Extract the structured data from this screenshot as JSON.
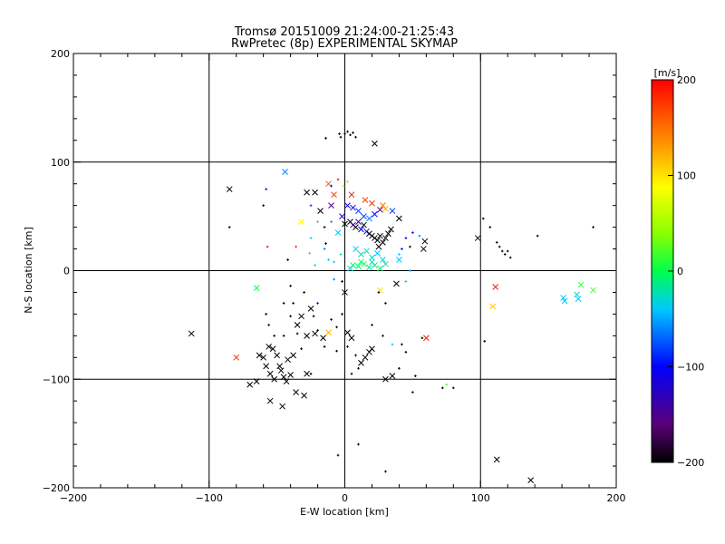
{
  "chart_data": {
    "type": "scatter",
    "title": "Tromsø 20151009 21:24:00-21:25:43",
    "subtitle": "RwPretec (8p) EXPERIMENTAL SKYMAP",
    "xlabel": "E-W location [km]",
    "ylabel": "N-S location [km]",
    "xlim": [
      -200,
      200
    ],
    "ylim": [
      -200,
      200
    ],
    "xticks": [
      -200,
      -100,
      0,
      100,
      200
    ],
    "yticks": [
      -200,
      -100,
      0,
      100,
      200
    ],
    "grid": true,
    "colorbar": {
      "label": "[m/s]",
      "range": [
        -200,
        200
      ],
      "ticks": [
        200,
        100,
        0,
        -100,
        -200
      ],
      "colormap": "black-purple-blue-cyan-green-yellow-orange-red",
      "placement": "right"
    },
    "markers": {
      "cross": "x",
      "dot": "+"
    },
    "points": [
      {
        "x": -113,
        "y": -58,
        "v": -200,
        "m": "x"
      },
      {
        "x": -85,
        "y": 75,
        "v": -200,
        "m": "x"
      },
      {
        "x": -80,
        "y": -80,
        "v": 180,
        "m": "x"
      },
      {
        "x": -65,
        "y": -16,
        "v": 0,
        "m": "x"
      },
      {
        "x": -63,
        "y": -78,
        "v": -200,
        "m": "x"
      },
      {
        "x": -60,
        "y": -80,
        "v": -200,
        "m": "x"
      },
      {
        "x": -58,
        "y": -88,
        "v": -200,
        "m": "x"
      },
      {
        "x": -56,
        "y": -70,
        "v": -200,
        "m": "x"
      },
      {
        "x": -55,
        "y": -95,
        "v": -200,
        "m": "x"
      },
      {
        "x": -53,
        "y": -72,
        "v": -200,
        "m": "x"
      },
      {
        "x": -52,
        "y": -100,
        "v": -200,
        "m": "x"
      },
      {
        "x": -50,
        "y": -78,
        "v": -200,
        "m": "x"
      },
      {
        "x": -48,
        "y": -88,
        "v": -200,
        "m": "x"
      },
      {
        "x": -47,
        "y": -92,
        "v": -200,
        "m": "x"
      },
      {
        "x": -46,
        "y": -125,
        "v": -200,
        "m": "x"
      },
      {
        "x": -45,
        "y": -98,
        "v": -200,
        "m": "x"
      },
      {
        "x": -44,
        "y": 91,
        "v": -60,
        "m": "x"
      },
      {
        "x": -43,
        "y": -102,
        "v": -200,
        "m": "x"
      },
      {
        "x": -42,
        "y": -82,
        "v": -200,
        "m": "x"
      },
      {
        "x": -40,
        "y": -96,
        "v": -200,
        "m": "x"
      },
      {
        "x": -38,
        "y": -78,
        "v": -200,
        "m": "x"
      },
      {
        "x": -36,
        "y": -112,
        "v": -200,
        "m": "x"
      },
      {
        "x": -55,
        "y": -120,
        "v": -200,
        "m": "x"
      },
      {
        "x": -65,
        "y": -102,
        "v": -200,
        "m": "x"
      },
      {
        "x": -70,
        "y": -105,
        "v": -200,
        "m": "x"
      },
      {
        "x": -30,
        "y": -115,
        "v": -200,
        "m": "x"
      },
      {
        "x": -28,
        "y": -95,
        "v": -200,
        "m": "x"
      },
      {
        "x": -35,
        "y": -50,
        "v": -200,
        "m": "x"
      },
      {
        "x": -32,
        "y": -42,
        "v": -200,
        "m": "x"
      },
      {
        "x": -28,
        "y": -60,
        "v": -200,
        "m": "x"
      },
      {
        "x": -25,
        "y": -35,
        "v": -200,
        "m": "x"
      },
      {
        "x": -22,
        "y": -58,
        "v": -200,
        "m": "x"
      },
      {
        "x": -16,
        "y": -62,
        "v": -200,
        "m": "x"
      },
      {
        "x": -12,
        "y": -57,
        "v": 120,
        "m": "x"
      },
      {
        "x": -32,
        "y": 45,
        "v": 90,
        "m": "x"
      },
      {
        "x": -28,
        "y": 72,
        "v": -200,
        "m": "x"
      },
      {
        "x": -22,
        "y": 72,
        "v": -200,
        "m": "x"
      },
      {
        "x": -18,
        "y": 55,
        "v": -200,
        "m": "x"
      },
      {
        "x": -12,
        "y": 80,
        "v": 160,
        "m": "x"
      },
      {
        "x": -10,
        "y": 60,
        "v": -150,
        "m": "x"
      },
      {
        "x": -8,
        "y": 70,
        "v": 180,
        "m": "x"
      },
      {
        "x": 0,
        "y": -20,
        "v": -200,
        "m": "x"
      },
      {
        "x": 2,
        "y": -57,
        "v": -200,
        "m": "x"
      },
      {
        "x": 5,
        "y": -62,
        "v": -200,
        "m": "x"
      },
      {
        "x": 12,
        "y": -85,
        "v": -200,
        "m": "x"
      },
      {
        "x": 15,
        "y": -80,
        "v": -200,
        "m": "x"
      },
      {
        "x": 18,
        "y": -75,
        "v": -200,
        "m": "x"
      },
      {
        "x": 20,
        "y": -72,
        "v": -200,
        "m": "x"
      },
      {
        "x": 26,
        "y": -18,
        "v": 100,
        "m": "x"
      },
      {
        "x": 30,
        "y": -100,
        "v": -200,
        "m": "x"
      },
      {
        "x": 35,
        "y": -97,
        "v": -200,
        "m": "x"
      },
      {
        "x": 22,
        "y": 117,
        "v": -200,
        "m": "x"
      },
      {
        "x": 60,
        "y": -62,
        "v": 190,
        "m": "x"
      },
      {
        "x": 58,
        "y": 20,
        "v": -200,
        "m": "x"
      },
      {
        "x": 59,
        "y": 27,
        "v": -200,
        "m": "x"
      },
      {
        "x": 98,
        "y": 30,
        "v": -200,
        "m": "x"
      },
      {
        "x": 109,
        "y": -33,
        "v": 110,
        "m": "x"
      },
      {
        "x": 111,
        "y": -15,
        "v": 190,
        "m": "x"
      },
      {
        "x": 112,
        "y": -174,
        "v": -200,
        "m": "x"
      },
      {
        "x": 137,
        "y": -193,
        "v": -200,
        "m": "x"
      },
      {
        "x": 161,
        "y": -25,
        "v": -40,
        "m": "x"
      },
      {
        "x": 162,
        "y": -28,
        "v": -40,
        "m": "x"
      },
      {
        "x": 171,
        "y": -22,
        "v": -30,
        "m": "x"
      },
      {
        "x": 172,
        "y": -26,
        "v": -40,
        "m": "x"
      },
      {
        "x": 174,
        "y": -13,
        "v": 10,
        "m": "x"
      },
      {
        "x": 183,
        "y": -18,
        "v": 20,
        "m": "x"
      },
      {
        "x": 0,
        "y": 43,
        "v": -200,
        "m": "x"
      },
      {
        "x": 4,
        "y": 45,
        "v": -200,
        "m": "x"
      },
      {
        "x": 6,
        "y": 42,
        "v": -150,
        "m": "x"
      },
      {
        "x": 8,
        "y": 40,
        "v": -200,
        "m": "x"
      },
      {
        "x": 10,
        "y": 45,
        "v": -120,
        "m": "x"
      },
      {
        "x": 12,
        "y": 38,
        "v": -100,
        "m": "x"
      },
      {
        "x": 14,
        "y": 42,
        "v": -200,
        "m": "x"
      },
      {
        "x": 16,
        "y": 36,
        "v": -90,
        "m": "x"
      },
      {
        "x": 18,
        "y": 34,
        "v": -200,
        "m": "x"
      },
      {
        "x": 20,
        "y": 32,
        "v": -200,
        "m": "x"
      },
      {
        "x": 22,
        "y": 30,
        "v": -200,
        "m": "x"
      },
      {
        "x": 24,
        "y": 28,
        "v": -200,
        "m": "x"
      },
      {
        "x": 26,
        "y": 32,
        "v": -200,
        "m": "x"
      },
      {
        "x": 28,
        "y": 26,
        "v": -200,
        "m": "x"
      },
      {
        "x": 30,
        "y": 30,
        "v": -200,
        "m": "x"
      },
      {
        "x": 32,
        "y": 34,
        "v": -200,
        "m": "x"
      },
      {
        "x": 34,
        "y": 38,
        "v": -200,
        "m": "x"
      },
      {
        "x": 25,
        "y": 22,
        "v": -200,
        "m": "x"
      },
      {
        "x": 14,
        "y": 50,
        "v": -80,
        "m": "x"
      },
      {
        "x": 10,
        "y": 55,
        "v": -80,
        "m": "x"
      },
      {
        "x": 18,
        "y": 48,
        "v": -60,
        "m": "x"
      },
      {
        "x": 22,
        "y": 52,
        "v": -100,
        "m": "x"
      },
      {
        "x": 26,
        "y": 56,
        "v": -150,
        "m": "x"
      },
      {
        "x": 28,
        "y": 60,
        "v": 150,
        "m": "x"
      },
      {
        "x": 30,
        "y": 57,
        "v": 120,
        "m": "x"
      },
      {
        "x": 35,
        "y": 55,
        "v": -80,
        "m": "x"
      },
      {
        "x": 40,
        "y": 48,
        "v": -200,
        "m": "x"
      },
      {
        "x": 15,
        "y": 65,
        "v": 170,
        "m": "x"
      },
      {
        "x": 20,
        "y": 62,
        "v": 180,
        "m": "x"
      },
      {
        "x": 5,
        "y": 70,
        "v": 190,
        "m": "x"
      },
      {
        "x": 8,
        "y": 20,
        "v": -40,
        "m": "x"
      },
      {
        "x": 12,
        "y": 15,
        "v": -30,
        "m": "x"
      },
      {
        "x": 16,
        "y": 18,
        "v": -20,
        "m": "x"
      },
      {
        "x": 20,
        "y": 12,
        "v": -30,
        "m": "x"
      },
      {
        "x": 24,
        "y": 16,
        "v": -40,
        "m": "x"
      },
      {
        "x": 28,
        "y": 10,
        "v": -30,
        "m": "x"
      },
      {
        "x": 6,
        "y": 5,
        "v": 0,
        "m": "x"
      },
      {
        "x": 10,
        "y": 4,
        "v": -10,
        "m": "x"
      },
      {
        "x": 14,
        "y": 6,
        "v": 0,
        "m": "x"
      },
      {
        "x": 18,
        "y": 3,
        "v": -20,
        "m": "x"
      },
      {
        "x": 22,
        "y": 5,
        "v": -10,
        "m": "x"
      },
      {
        "x": 26,
        "y": 2,
        "v": -10,
        "m": "x"
      },
      {
        "x": 30,
        "y": 6,
        "v": -20,
        "m": "x"
      },
      {
        "x": 4,
        "y": 2,
        "v": -30,
        "m": "x"
      },
      {
        "x": 12,
        "y": 8,
        "v": 0,
        "m": "x"
      },
      {
        "x": 20,
        "y": 8,
        "v": -20,
        "m": "x"
      },
      {
        "x": 40,
        "y": 10,
        "v": -40,
        "m": "x"
      },
      {
        "x": 2,
        "y": 60,
        "v": -100,
        "m": "x"
      },
      {
        "x": 6,
        "y": 58,
        "v": -120,
        "m": "x"
      },
      {
        "x": -2,
        "y": 50,
        "v": -120,
        "m": "x"
      },
      {
        "x": -5,
        "y": 35,
        "v": -40,
        "m": "x"
      },
      {
        "x": 38,
        "y": -12,
        "v": -200,
        "m": "x"
      },
      {
        "x": -3,
        "y": 123,
        "v": -200,
        "m": "+"
      },
      {
        "x": -4,
        "y": 126,
        "v": -200,
        "m": "+"
      },
      {
        "x": 0,
        "y": 126,
        "v": -200,
        "m": "+"
      },
      {
        "x": 2,
        "y": 128,
        "v": -200,
        "m": "+"
      },
      {
        "x": 4,
        "y": 125,
        "v": -200,
        "m": "+"
      },
      {
        "x": 6,
        "y": 127,
        "v": -200,
        "m": "+"
      },
      {
        "x": 8,
        "y": 123,
        "v": -200,
        "m": "+"
      },
      {
        "x": -14,
        "y": 122,
        "v": -200,
        "m": "+"
      },
      {
        "x": 102,
        "y": 48,
        "v": -200,
        "m": "+"
      },
      {
        "x": 107,
        "y": 40,
        "v": -200,
        "m": "+"
      },
      {
        "x": 112,
        "y": 26,
        "v": -200,
        "m": "+"
      },
      {
        "x": 114,
        "y": 22,
        "v": -200,
        "m": "+"
      },
      {
        "x": 116,
        "y": 18,
        "v": -200,
        "m": "+"
      },
      {
        "x": 118,
        "y": 15,
        "v": -200,
        "m": "+"
      },
      {
        "x": 120,
        "y": 18,
        "v": -200,
        "m": "+"
      },
      {
        "x": 122,
        "y": 12,
        "v": -200,
        "m": "+"
      },
      {
        "x": 142,
        "y": 32,
        "v": -200,
        "m": "+"
      },
      {
        "x": 183,
        "y": 40,
        "v": -200,
        "m": "+"
      },
      {
        "x": 103,
        "y": -65,
        "v": -200,
        "m": "+"
      },
      {
        "x": -58,
        "y": -40,
        "v": -200,
        "m": "+"
      },
      {
        "x": -56,
        "y": -50,
        "v": -200,
        "m": "+"
      },
      {
        "x": -45,
        "y": -60,
        "v": -200,
        "m": "+"
      },
      {
        "x": -40,
        "y": -42,
        "v": -200,
        "m": "+"
      },
      {
        "x": -20,
        "y": -55,
        "v": -200,
        "m": "+"
      },
      {
        "x": -10,
        "y": -45,
        "v": -200,
        "m": "+"
      },
      {
        "x": -5,
        "y": -170,
        "v": -200,
        "m": "+"
      },
      {
        "x": 10,
        "y": -160,
        "v": -200,
        "m": "+"
      },
      {
        "x": 30,
        "y": -185,
        "v": -200,
        "m": "+"
      },
      {
        "x": 52,
        "y": -97,
        "v": -200,
        "m": "+"
      },
      {
        "x": 50,
        "y": -112,
        "v": -200,
        "m": "+"
      },
      {
        "x": 72,
        "y": -108,
        "v": -200,
        "m": "+"
      },
      {
        "x": 80,
        "y": -108,
        "v": -200,
        "m": "+"
      },
      {
        "x": 75,
        "y": -105,
        "v": 20,
        "m": "+"
      },
      {
        "x": -85,
        "y": 40,
        "v": -200,
        "m": "+"
      },
      {
        "x": -60,
        "y": 60,
        "v": -200,
        "m": "+"
      },
      {
        "x": -58,
        "y": 75,
        "v": -120,
        "m": "+"
      },
      {
        "x": -57,
        "y": 22,
        "v": 190,
        "m": "+"
      },
      {
        "x": -36,
        "y": 22,
        "v": 180,
        "m": "+"
      },
      {
        "x": -40,
        "y": -14,
        "v": -200,
        "m": "+"
      },
      {
        "x": -30,
        "y": -20,
        "v": -200,
        "m": "+"
      },
      {
        "x": -20,
        "y": -30,
        "v": -100,
        "m": "+"
      },
      {
        "x": -8,
        "y": -8,
        "v": -60,
        "m": "+"
      },
      {
        "x": -2,
        "y": -10,
        "v": -200,
        "m": "+"
      },
      {
        "x": -6,
        "y": -52,
        "v": -200,
        "m": "+"
      },
      {
        "x": -2,
        "y": -40,
        "v": -200,
        "m": "+"
      },
      {
        "x": -6,
        "y": -74,
        "v": -200,
        "m": "+"
      },
      {
        "x": 2,
        "y": -70,
        "v": -200,
        "m": "+"
      },
      {
        "x": 8,
        "y": -78,
        "v": -200,
        "m": "+"
      },
      {
        "x": 25,
        "y": -20,
        "v": -200,
        "m": "+"
      },
      {
        "x": 20,
        "y": -50,
        "v": -200,
        "m": "+"
      },
      {
        "x": 30,
        "y": -30,
        "v": -200,
        "m": "+"
      },
      {
        "x": 35,
        "y": -68,
        "v": -40,
        "m": "+"
      },
      {
        "x": 42,
        "y": -68,
        "v": -200,
        "m": "+"
      },
      {
        "x": 40,
        "y": -90,
        "v": -200,
        "m": "+"
      },
      {
        "x": 45,
        "y": -75,
        "v": -200,
        "m": "+"
      },
      {
        "x": -10,
        "y": 45,
        "v": -60,
        "m": "+"
      },
      {
        "x": -25,
        "y": 60,
        "v": -80,
        "m": "+"
      },
      {
        "x": -20,
        "y": 45,
        "v": -40,
        "m": "+"
      },
      {
        "x": -15,
        "y": 40,
        "v": -200,
        "m": "+"
      },
      {
        "x": -15,
        "y": 20,
        "v": -60,
        "m": "+"
      },
      {
        "x": -3,
        "y": 15,
        "v": -20,
        "m": "+"
      },
      {
        "x": -8,
        "y": 8,
        "v": -40,
        "m": "+"
      },
      {
        "x": -12,
        "y": 10,
        "v": -40,
        "m": "+"
      },
      {
        "x": -25,
        "y": 30,
        "v": -40,
        "m": "+"
      },
      {
        "x": -26,
        "y": 16,
        "v": 0,
        "m": "+"
      },
      {
        "x": -22,
        "y": 5,
        "v": -20,
        "m": "+"
      },
      {
        "x": -14,
        "y": 25,
        "v": -200,
        "m": "+"
      },
      {
        "x": 42,
        "y": 20,
        "v": -100,
        "m": "+"
      },
      {
        "x": 45,
        "y": 30,
        "v": -100,
        "m": "+"
      },
      {
        "x": 48,
        "y": 22,
        "v": -200,
        "m": "+"
      },
      {
        "x": 50,
        "y": 35,
        "v": -100,
        "m": "+"
      },
      {
        "x": 55,
        "y": 32,
        "v": -60,
        "m": "+"
      },
      {
        "x": 48,
        "y": 0,
        "v": -60,
        "m": "+"
      },
      {
        "x": 40,
        "y": 15,
        "v": -40,
        "m": "+"
      },
      {
        "x": 45,
        "y": -10,
        "v": -40,
        "m": "+"
      },
      {
        "x": -10,
        "y": 78,
        "v": -100,
        "m": "+"
      },
      {
        "x": -5,
        "y": 84,
        "v": 190,
        "m": "+"
      },
      {
        "x": -1,
        "y": 78,
        "v": 60,
        "m": "+"
      },
      {
        "x": 2,
        "y": 82,
        "v": 40,
        "m": "+"
      },
      {
        "x": -38,
        "y": -30,
        "v": -200,
        "m": "+"
      },
      {
        "x": -45,
        "y": -30,
        "v": -200,
        "m": "+"
      },
      {
        "x": -42,
        "y": 10,
        "v": -200,
        "m": "+"
      },
      {
        "x": -52,
        "y": -60,
        "v": -200,
        "m": "+"
      },
      {
        "x": -35,
        "y": -58,
        "v": -200,
        "m": "+"
      },
      {
        "x": -23,
        "y": -42,
        "v": -200,
        "m": "+"
      },
      {
        "x": -32,
        "y": -72,
        "v": -200,
        "m": "+"
      },
      {
        "x": -15,
        "y": -70,
        "v": -200,
        "m": "+"
      },
      {
        "x": -25,
        "y": -95,
        "v": -200,
        "m": "+"
      },
      {
        "x": 28,
        "y": -60,
        "v": -200,
        "m": "+"
      },
      {
        "x": 10,
        "y": -90,
        "v": -200,
        "m": "+"
      },
      {
        "x": 5,
        "y": -95,
        "v": -200,
        "m": "+"
      },
      {
        "x": 57,
        "y": -62,
        "v": -200,
        "m": "+"
      }
    ]
  }
}
